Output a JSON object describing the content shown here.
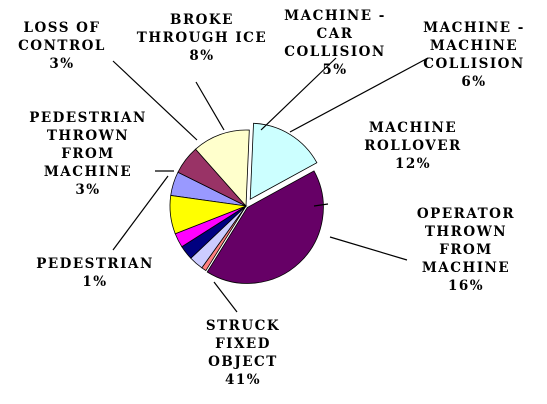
{
  "chart_data": {
    "type": "pie",
    "title": "",
    "slices": [
      {
        "label": [
          "MACHINE -",
          "CAR",
          "COLLISION"
        ],
        "pct": "5%",
        "value": 5,
        "color": "#9999ff"
      },
      {
        "label": [
          "MACHINE -",
          "MACHINE",
          "COLLISION"
        ],
        "pct": "6%",
        "value": 6,
        "color": "#993366"
      },
      {
        "label": [
          "MACHINE",
          "ROLLOVER"
        ],
        "pct": "12%",
        "value": 12,
        "color": "#ffffcc"
      },
      {
        "label": [
          "OPERATOR",
          "THROWN",
          "FROM",
          "MACHINE"
        ],
        "pct": "16%",
        "value": 16,
        "color": "#ccffff"
      },
      {
        "label": [
          "STRUCK",
          "FIXED",
          "OBJECT"
        ],
        "pct": "41%",
        "value": 41,
        "color": "#660066"
      },
      {
        "label": [
          "PEDESTRIAN"
        ],
        "pct": "1%",
        "value": 1,
        "color": "#ff8080"
      },
      {
        "label": [
          "PEDESTRIAN",
          "THROWN",
          "FROM",
          "MACHINE"
        ],
        "pct": "3%",
        "value": 3,
        "color": "#ccccff"
      },
      {
        "label": [],
        "pct": "",
        "value": 3,
        "color": "#000080"
      },
      {
        "label": [
          "LOSS OF",
          "CONTROL"
        ],
        "pct": "3%",
        "value": 3,
        "color": "#ff00ff"
      },
      {
        "label": [
          "BROKE",
          "THROUGH ICE"
        ],
        "pct": "8%",
        "value": 8,
        "color": "#ffff00"
      }
    ]
  }
}
